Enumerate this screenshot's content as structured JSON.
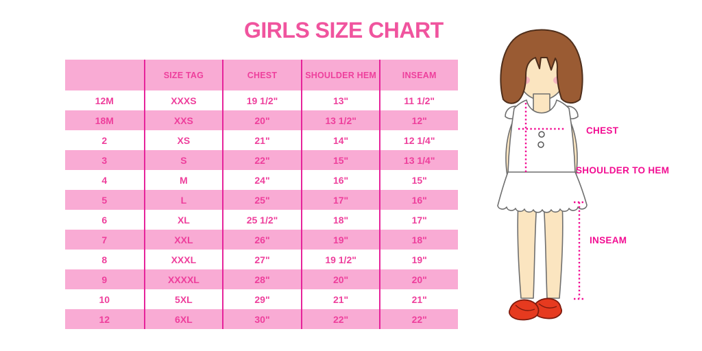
{
  "colors": {
    "title_pink": "#F0549E",
    "hot_pink": "#EE3F9C",
    "band_pink": "#F9ABD4",
    "divider_pink": "#E6239A",
    "annotation_magenta": "#F20D92",
    "hair_brown": "#9A5B33",
    "skin_tone": "#FBE5C0",
    "shoe_red": "#E63A1F"
  },
  "chart_data": {
    "type": "table",
    "title": "GIRLS SIZE CHART",
    "columns": [
      "",
      "SIZE TAG",
      "CHEST",
      "SHOULDER HEM",
      "INSEAM"
    ],
    "rows": [
      [
        "12M",
        "XXXS",
        "19 1/2\"",
        "13\"",
        "11 1/2\""
      ],
      [
        "18M",
        "XXS",
        "20\"",
        "13 1/2\"",
        "12\""
      ],
      [
        "2",
        "XS",
        "21\"",
        "14\"",
        "12 1/4\""
      ],
      [
        "3",
        "S",
        "22\"",
        "15\"",
        "13 1/4\""
      ],
      [
        "4",
        "M",
        "24\"",
        "16\"",
        "15\""
      ],
      [
        "5",
        "L",
        "25\"",
        "17\"",
        "16\""
      ],
      [
        "6",
        "XL",
        "25 1/2\"",
        "18\"",
        "17\""
      ],
      [
        "7",
        "XXL",
        "26\"",
        "19\"",
        "18\""
      ],
      [
        "8",
        "XXXL",
        "27\"",
        "19 1/2\"",
        "19\""
      ],
      [
        "9",
        "XXXXL",
        "28\"",
        "20\"",
        "20\""
      ],
      [
        "10",
        "5XL",
        "29\"",
        "21\"",
        "21\""
      ],
      [
        "12",
        "6XL",
        "30\"",
        "22\"",
        "22\""
      ]
    ],
    "annotations": [
      "CHEST",
      "SHOULDER TO HEM",
      "INSEAM"
    ],
    "layout": {
      "row_banding": "alternating white and pink, header pink",
      "column_dividers": "vertical magenta lines between all columns",
      "figure_position": "right side: girl illustration with dotted measurement lines"
    }
  }
}
